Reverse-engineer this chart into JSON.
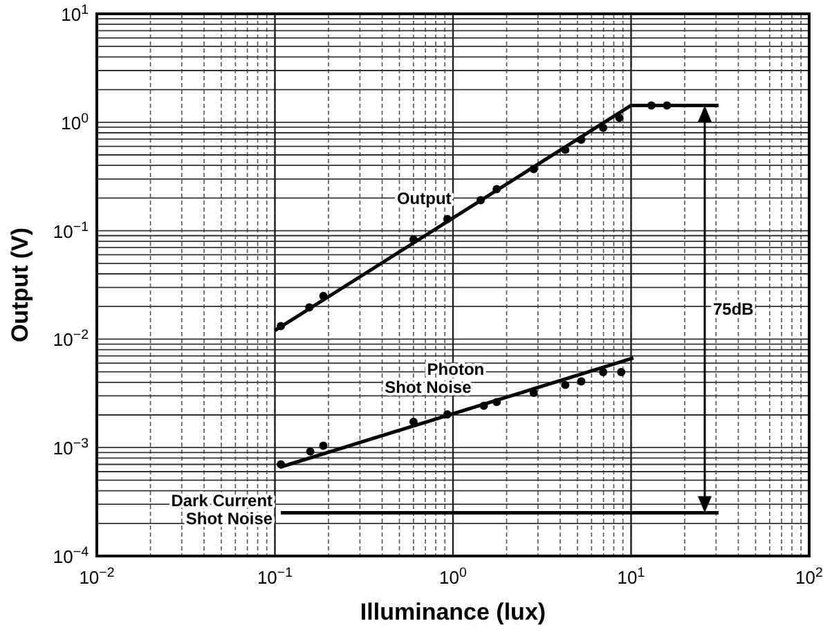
{
  "chart_data": {
    "type": "line",
    "xlabel": "Illuminance (lux)",
    "ylabel": "Output (V)",
    "log": "xy",
    "grid": true,
    "marker": "none",
    "line_style": "solid",
    "xlim": [
      0.01,
      100
    ],
    "ylim": [
      0.0001,
      10
    ],
    "xticks": [
      {
        "value": 0.01,
        "label": "10$^{−2}$"
      },
      {
        "value": 0.1,
        "label": "10$^{−1}$"
      },
      {
        "value": 1,
        "label": "10$^{0}$"
      },
      {
        "value": 10,
        "label": "10$^{1}$"
      },
      {
        "value": 100,
        "label": "10$^{2}$"
      }
    ],
    "yticks": [
      {
        "value": 0.0001,
        "label": "10$^{−4}$"
      },
      {
        "value": 0.001,
        "label": "10$^{−3}$"
      },
      {
        "value": 0.01,
        "label": "10$^{−2}$"
      },
      {
        "value": 0.1,
        "label": "10$^{−1}$"
      },
      {
        "value": 1,
        "label": "10$^{0}$"
      },
      {
        "value": 10,
        "label": "10$^{1}$"
      }
    ],
    "series": [
      {
        "name": "Output",
        "color": "#000000",
        "x": [
          0.1,
          10,
          31
        ],
        "values": [
          0.012,
          1.43,
          1.43
        ]
      },
      {
        "type": "scatter",
        "marker": "circle",
        "color": "#000000",
        "x": [
          0.108,
          0.156,
          0.187,
          0.6,
          0.93,
          1.43,
          1.76,
          2.84,
          4.27,
          5.25,
          6.97,
          8.6,
          13,
          15.9
        ],
        "values": [
          0.0132,
          0.0196,
          0.025,
          0.083,
          0.128,
          0.191,
          0.242,
          0.37,
          0.557,
          0.69,
          0.89,
          1.1,
          1.43,
          1.43
        ]
      },
      {
        "name": "Photon Shot Noise",
        "color": "#000000",
        "x": [
          0.107,
          10.3
        ],
        "values": [
          0.00066,
          0.0067
        ]
      },
      {
        "type": "scatter",
        "marker": "circle",
        "color": "#000000",
        "x": [
          0.108,
          0.158,
          0.187,
          0.6,
          0.93,
          1.49,
          1.76,
          2.84,
          4.27,
          5.25,
          6.97,
          8.8
        ],
        "values": [
          0.0007,
          0.00092,
          0.00104,
          0.00173,
          0.00202,
          0.00243,
          0.00263,
          0.0032,
          0.00378,
          0.00408,
          0.00497,
          0.00497
        ]
      },
      {
        "name": "Dark Current Shot Noise",
        "color": "#000000",
        "x": [
          0.108,
          31
        ],
        "values": [
          0.00025,
          0.00025
        ]
      }
    ],
    "annotations": [
      "75dB"
    ]
  }
}
